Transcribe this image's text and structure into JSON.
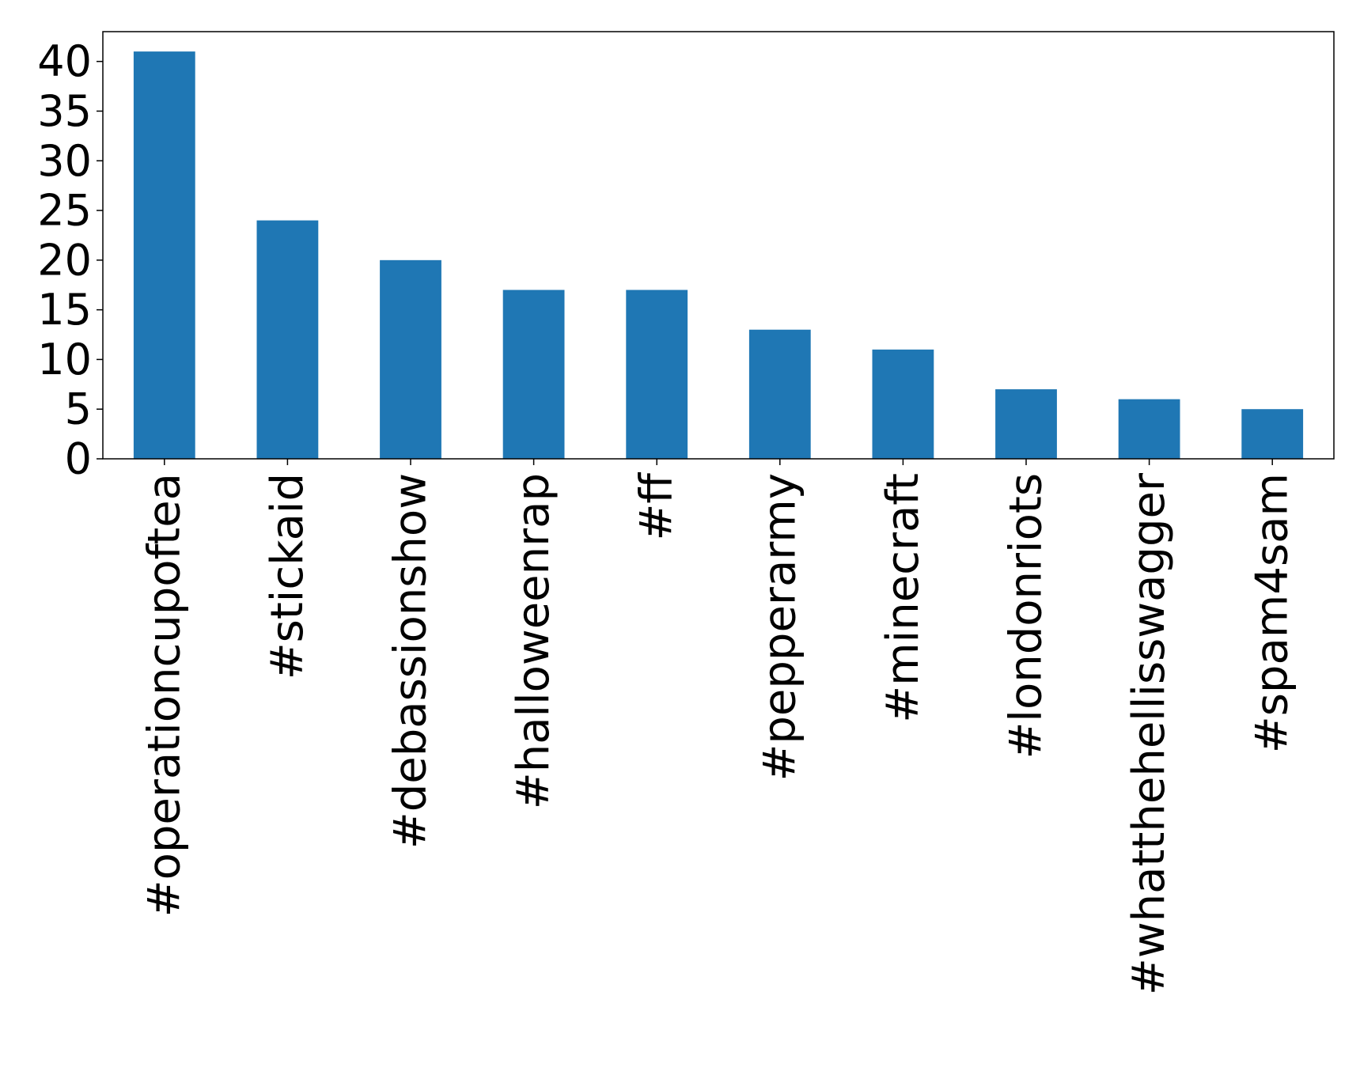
{
  "chart_data": {
    "type": "bar",
    "categories": [
      "#operationcupoftea",
      "#stickaid",
      "#debassionshow",
      "#halloweenrap",
      "#ff",
      "#pepperarmy",
      "#minecraft",
      "#londonriots",
      "#whatthehellisswagger",
      "#spam4sam"
    ],
    "values": [
      41,
      24,
      20,
      17,
      17,
      13,
      11,
      7,
      6,
      5
    ],
    "title": "",
    "xlabel": "",
    "ylabel": "",
    "ylim": [
      0,
      43
    ],
    "yticks": [
      0,
      5,
      10,
      15,
      20,
      25,
      30,
      35,
      40
    ],
    "bar_color": "#1f77b4",
    "grid": false,
    "legend": "none"
  }
}
